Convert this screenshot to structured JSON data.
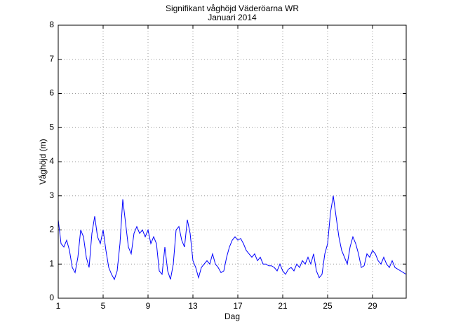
{
  "chart_data": {
    "type": "line",
    "title": "Signifikant våghöjd Väderöarna WR",
    "subtitle": "Januari 2014",
    "xlabel": "Dag",
    "ylabel": "Våghöjd (m)",
    "xlim": [
      1,
      32
    ],
    "ylim": [
      0,
      8
    ],
    "xticks": [
      1,
      5,
      9,
      13,
      17,
      21,
      25,
      29
    ],
    "yticks": [
      0,
      1,
      2,
      3,
      4,
      5,
      6,
      7,
      8
    ],
    "grid": true,
    "x": [
      1,
      1.25,
      1.5,
      1.75,
      2,
      2.25,
      2.5,
      2.75,
      3,
      3.25,
      3.5,
      3.75,
      4,
      4.25,
      4.5,
      4.75,
      5,
      5.25,
      5.5,
      5.75,
      6,
      6.25,
      6.5,
      6.75,
      7,
      7.25,
      7.5,
      7.75,
      8,
      8.25,
      8.5,
      8.75,
      9,
      9.25,
      9.5,
      9.75,
      10,
      10.25,
      10.5,
      10.75,
      11,
      11.25,
      11.5,
      11.75,
      12,
      12.25,
      12.5,
      12.75,
      13,
      13.25,
      13.5,
      13.75,
      14,
      14.25,
      14.5,
      14.75,
      15,
      15.25,
      15.5,
      15.75,
      16,
      16.25,
      16.5,
      16.75,
      17,
      17.25,
      17.5,
      17.75,
      18,
      18.25,
      18.5,
      18.75,
      19,
      19.25,
      19.5,
      19.75,
      20,
      20.25,
      20.5,
      20.75,
      21,
      21.25,
      21.5,
      21.75,
      22,
      22.25,
      22.5,
      22.75,
      23,
      23.25,
      23.5,
      23.75,
      24,
      24.25,
      24.5,
      24.75,
      25,
      25.25,
      25.5,
      25.75,
      26,
      26.25,
      26.5,
      26.75,
      27,
      27.25,
      27.5,
      27.75,
      28,
      28.25,
      28.5,
      28.75,
      29,
      29.25,
      29.5,
      29.75,
      30,
      30.25,
      30.5,
      30.75,
      31,
      31.25,
      31.5,
      31.75,
      32
    ],
    "series": [
      {
        "name": "Våghöjd",
        "color": "#0000ff",
        "values": [
          2.3,
          1.6,
          1.5,
          1.7,
          1.4,
          0.9,
          0.75,
          1.2,
          2.0,
          1.8,
          1.2,
          0.9,
          1.9,
          2.4,
          1.8,
          1.6,
          2.0,
          1.4,
          0.9,
          0.7,
          0.55,
          0.8,
          1.6,
          2.9,
          2.2,
          1.5,
          1.3,
          1.9,
          2.1,
          1.9,
          2.0,
          1.8,
          2.0,
          1.6,
          1.8,
          1.6,
          0.8,
          0.7,
          1.5,
          0.8,
          0.55,
          1.0,
          2.0,
          2.1,
          1.7,
          1.5,
          2.3,
          1.9,
          1.1,
          0.9,
          0.6,
          0.9,
          1.0,
          1.1,
          1.0,
          1.3,
          1.0,
          0.9,
          0.75,
          0.8,
          1.2,
          1.5,
          1.7,
          1.8,
          1.7,
          1.75,
          1.6,
          1.4,
          1.3,
          1.2,
          1.3,
          1.1,
          1.2,
          1.0,
          1.0,
          0.95,
          0.95,
          0.9,
          0.8,
          1.0,
          0.8,
          0.7,
          0.85,
          0.9,
          0.8,
          1.0,
          0.9,
          1.1,
          1.0,
          1.2,
          1.0,
          1.3,
          0.8,
          0.6,
          0.7,
          1.3,
          1.6,
          2.5,
          3.0,
          2.4,
          1.8,
          1.4,
          1.2,
          1.0,
          1.5,
          1.8,
          1.6,
          1.3,
          0.9,
          0.95,
          1.3,
          1.2,
          1.4,
          1.3,
          1.1,
          1.0,
          1.2,
          1.0,
          0.9,
          1.1,
          0.9,
          0.85,
          0.8,
          0.75,
          0.7
        ]
      }
    ]
  }
}
